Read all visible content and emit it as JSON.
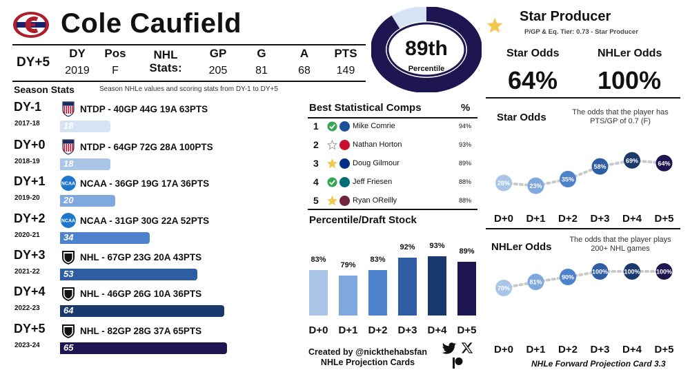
{
  "player": {
    "name": "Cole Caufield"
  },
  "header": {
    "dy_label": "DY+5",
    "columns": [
      {
        "label": "DY",
        "value": "2019"
      },
      {
        "label": "Pos",
        "value": "F"
      },
      {
        "label": "NHL",
        "label2": "Stats:",
        "value": ""
      },
      {
        "label": "GP",
        "value": "205"
      },
      {
        "label": "G",
        "value": "81"
      },
      {
        "label": "A",
        "value": "68"
      },
      {
        "label": "PTS",
        "value": "149"
      }
    ]
  },
  "season_stats": {
    "title": "Season Stats",
    "subtitle": "Season NHLe values and scoring stats from DY-1 to DY+5",
    "rows": [
      {
        "dy": "DY-1",
        "year": "2017-18",
        "line": "NTDP - 40GP 44G 19A 63PTS",
        "nhle": 18,
        "league": "ntdp",
        "color": "#d6e3f5"
      },
      {
        "dy": "DY+0",
        "year": "2018-19",
        "line": "NTDP - 64GP 72G 28A 100PTS",
        "nhle": 18,
        "league": "ntdp",
        "color": "#a9c6e8"
      },
      {
        "dy": "DY+1",
        "year": "2019-20",
        "line": "NCAA - 36GP 19G 17A 36PTS",
        "nhle": 20,
        "league": "ncaa",
        "color": "#7fa9de"
      },
      {
        "dy": "DY+2",
        "year": "2020-21",
        "line": "NCAA - 31GP 30G 22A 52PTS",
        "nhle": 34,
        "league": "ncaa",
        "color": "#4d82cc"
      },
      {
        "dy": "DY+3",
        "year": "2021-22",
        "line": "NHL - 67GP 23G 20A 43PTS",
        "nhle": 53,
        "league": "nhl",
        "color": "#2e5da3"
      },
      {
        "dy": "DY+4",
        "year": "2022-23",
        "line": "NHL - 46GP 26G 10A 36PTS",
        "nhle": 64,
        "league": "nhl",
        "color": "#1a3a6e"
      },
      {
        "dy": "DY+5",
        "year": "2023-24",
        "line": "NHL - 82GP 28G 37A 65PTS",
        "nhle": 65,
        "league": "nhl",
        "color": "#1e1650"
      }
    ]
  },
  "percentile": {
    "value": "89th",
    "label": "Percentile",
    "fraction": 0.89
  },
  "comps": {
    "title": "Best Statistical Comps",
    "pct_header": "%",
    "rows": [
      {
        "rank": "1",
        "name": "Mike Comrie",
        "pct": "94%",
        "marker": "check",
        "team_color": "#1b4f9c"
      },
      {
        "rank": "2",
        "name": "Nathan Horton",
        "pct": "93%",
        "marker": "star-empty",
        "team_color": "#c8102e"
      },
      {
        "rank": "3",
        "name": "Doug Gilmour",
        "pct": "89%",
        "marker": "star",
        "team_color": "#002f87"
      },
      {
        "rank": "4",
        "name": "Jeff Friesen",
        "pct": "88%",
        "marker": "check",
        "team_color": "#006d75"
      },
      {
        "rank": "5",
        "name": "Ryan OReilly",
        "pct": "88%",
        "marker": "star",
        "team_color": "#6f263d"
      }
    ]
  },
  "chart_data": [
    {
      "type": "bar",
      "title": "Percentile/Draft Stock",
      "categories": [
        "D+0",
        "D+1",
        "D+2",
        "D+3",
        "D+4",
        "D+5"
      ],
      "values": [
        83,
        79,
        83,
        92,
        93,
        89
      ],
      "value_labels": [
        "83%",
        "79%",
        "83%",
        "92%",
        "93%",
        "89%"
      ],
      "colors": [
        "#a9c6e8",
        "#7fa9de",
        "#4d82cc",
        "#2e5da3",
        "#1a3a6e",
        "#1e1650"
      ]
    },
    {
      "type": "line",
      "title": "Star Odds",
      "description": "The odds that the player has PTS/GP of 0.7 (F)",
      "categories": [
        "D+0",
        "D+1",
        "D+2",
        "D+3",
        "D+4",
        "D+5"
      ],
      "values": [
        28,
        23,
        35,
        58,
        69,
        64
      ],
      "value_labels": [
        "28%",
        "23%",
        "35%",
        "58%",
        "69%",
        "64%"
      ],
      "colors": [
        "#a9c6e8",
        "#7fa9de",
        "#4d82cc",
        "#2e5da3",
        "#1a3a6e",
        "#1e1650"
      ]
    },
    {
      "type": "line",
      "title": "NHLer Odds",
      "description": "The odds that the player plays 200+ NHL games",
      "categories": [
        "D+0",
        "D+1",
        "D+2",
        "D+3",
        "D+4",
        "D+5"
      ],
      "values": [
        70,
        81,
        90,
        100,
        100,
        100
      ],
      "value_labels": [
        "70%",
        "81%",
        "90%",
        "100%",
        "100%",
        "100%"
      ],
      "colors": [
        "#a9c6e8",
        "#7fa9de",
        "#4d82cc",
        "#2e5da3",
        "#1a3a6e",
        "#1e1650"
      ]
    }
  ],
  "tier": {
    "title": "Star Producer",
    "subtitle": "P/GP & Eq. Tier:  0.73 - Star Producer"
  },
  "odds": {
    "star_label": "Star Odds",
    "star_value": "64%",
    "nhler_label": "NHLer Odds",
    "nhler_value": "100%"
  },
  "credit": {
    "line1": "Created by @nickthehabsfan",
    "line2": "NHLe Projection Cards"
  },
  "footer": "NHLe Forward Projection Card 3.3",
  "colors": {
    "navy": "#1e1650",
    "light": "#d6e3f5",
    "star": "#f2c94c",
    "check": "#3aa655"
  }
}
